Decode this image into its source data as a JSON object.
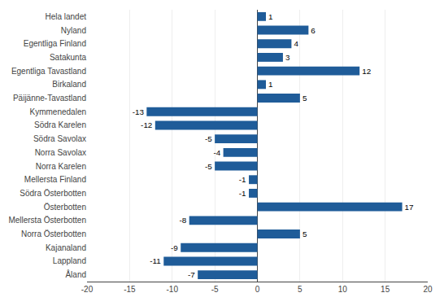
{
  "chart_data": {
    "type": "bar",
    "orientation": "horizontal",
    "categories": [
      "Hela landet",
      "Nyland",
      "Egentliga Finland",
      "Satakunta",
      "Egentliga Tavastland",
      "Birkaland",
      "Päijänne-Tavastland",
      "Kymmenedalen",
      "Södra Karelen",
      "Södra Savolax",
      "Norra Savolax",
      "Norra Karelen",
      "Mellersta Finland",
      "Södra Österbotten",
      "Österbotten",
      "Mellersta Österbotten",
      "Norra Österbotten",
      "Kajanaland",
      "Lappland",
      "Åland"
    ],
    "values": [
      1,
      6,
      4,
      3,
      12,
      1,
      5,
      -13,
      -12,
      -5,
      -4,
      -5,
      -1,
      -1,
      17,
      -8,
      5,
      -9,
      -11,
      -7
    ],
    "color": "#1F5C99",
    "xlim": [
      -20,
      20
    ],
    "xticks": [
      -20,
      -15,
      -10,
      -5,
      0,
      5,
      10,
      15,
      20
    ],
    "grid": true,
    "data_labels": true
  }
}
